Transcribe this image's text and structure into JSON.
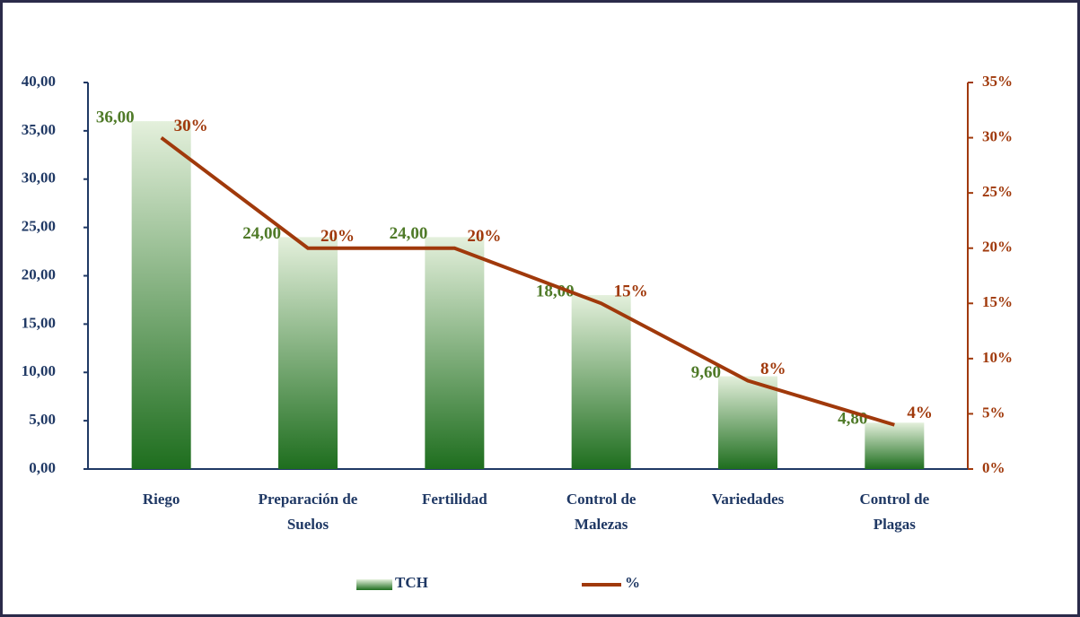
{
  "chart_data": {
    "type": "bar",
    "categories": [
      "Riego",
      "Preparación de Suelos",
      "Fertilidad",
      "Control de Malezas",
      "Variedades",
      "Control de Plagas"
    ],
    "series": [
      {
        "name": "TCH",
        "type": "bar",
        "axis": "y",
        "color": "#1e6e1e",
        "values": [
          36,
          24,
          24,
          18,
          9.6,
          4.8
        ],
        "value_labels": [
          "36,00",
          "24,00",
          "24,00",
          "18,00",
          "9,60",
          "4,80"
        ]
      },
      {
        "name": "%",
        "type": "line",
        "axis": "y2",
        "color": "#a0390b",
        "values": [
          30,
          20,
          20,
          15,
          8,
          4
        ],
        "value_labels": [
          "30%",
          "20%",
          "20%",
          "15%",
          "8%",
          "4%"
        ]
      }
    ],
    "ylim": [
      0,
      40
    ],
    "yticks": [
      {
        "value": 0,
        "label": "0,00"
      },
      {
        "value": 5,
        "label": "5,00"
      },
      {
        "value": 10,
        "label": "10,00"
      },
      {
        "value": 15,
        "label": "15,00"
      },
      {
        "value": 20,
        "label": "20,00"
      },
      {
        "value": 25,
        "label": "25,00"
      },
      {
        "value": 30,
        "label": "30,00"
      },
      {
        "value": 35,
        "label": "35,00"
      },
      {
        "value": 40,
        "label": "40,00"
      }
    ],
    "y2lim": [
      0,
      35
    ],
    "y2ticks": [
      {
        "value": 0,
        "label": "0%"
      },
      {
        "value": 5,
        "label": "5%"
      },
      {
        "value": 10,
        "label": "10%"
      },
      {
        "value": 15,
        "label": "15%"
      },
      {
        "value": 20,
        "label": "20%"
      },
      {
        "value": 25,
        "label": "25%"
      },
      {
        "value": 30,
        "label": "30%"
      },
      {
        "value": 35,
        "label": "35%"
      }
    ],
    "grid": false,
    "legend": "bottom"
  }
}
